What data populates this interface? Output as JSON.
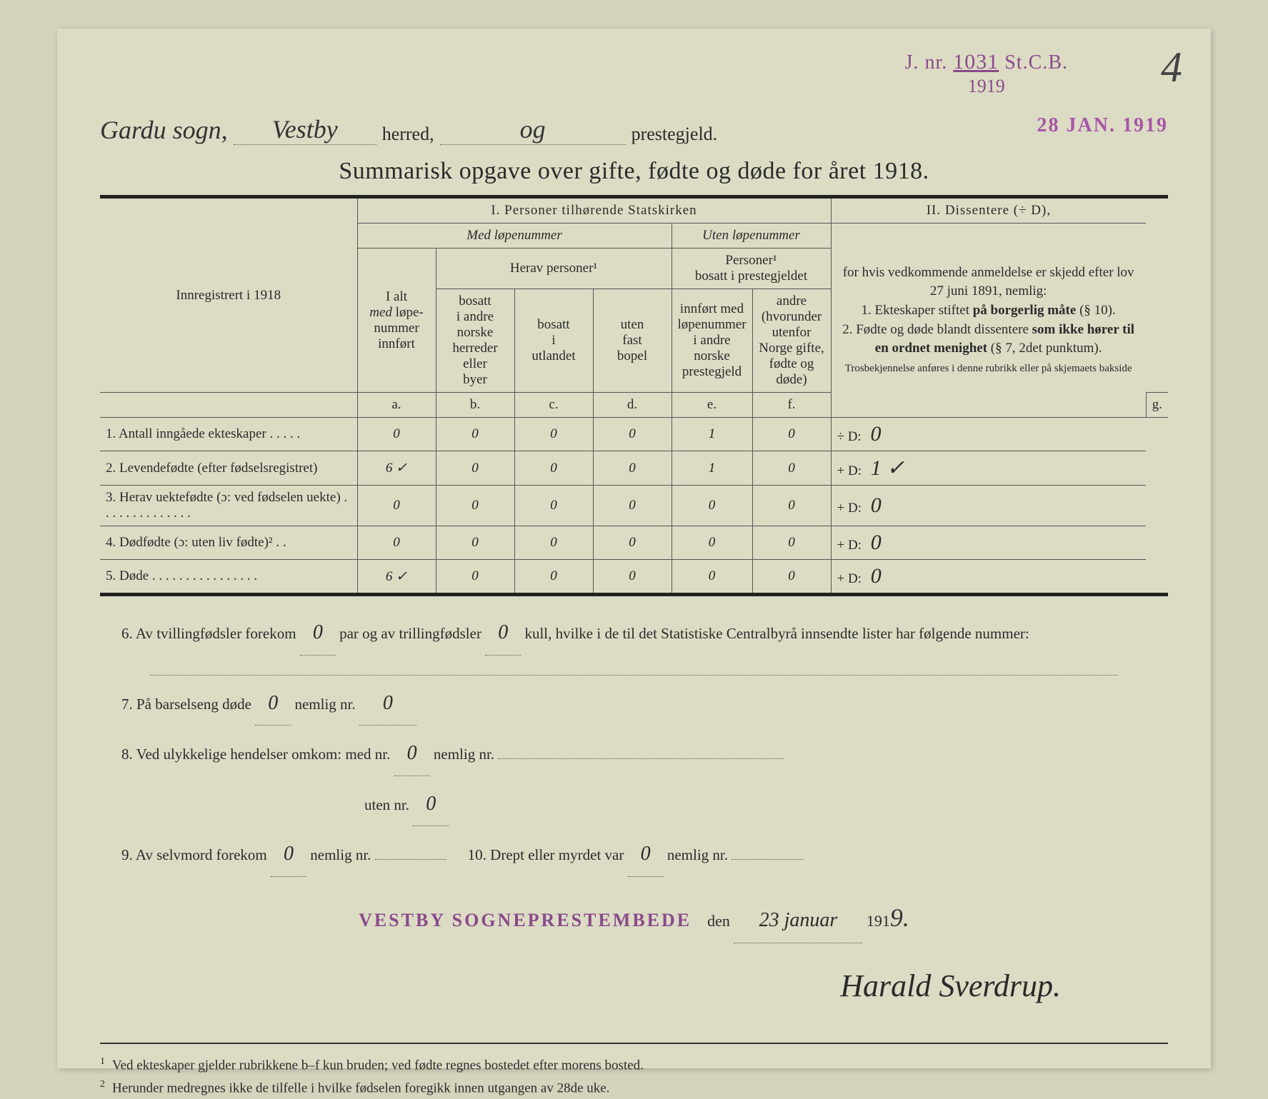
{
  "stamp": {
    "jnr_prefix": "J. nr.",
    "jnr_number": "1031",
    "jnr_suffix": "St.C.B.",
    "year": "1919"
  },
  "page_number": "4",
  "date_stamp": "28 JAN. 1919",
  "header": {
    "sogn": "Gardu sogn,",
    "sogn2": "Vestby",
    "herred_label": "herred,",
    "og": "og",
    "prestegjeld_label": "prestegjeld."
  },
  "title": "Summarisk opgave over gifte, fødte og døde for året 1918.",
  "table": {
    "section1": "I.  Personer tilhørende Statskirken",
    "section2_title": "II.  Dissentere (÷ D),",
    "section2_text": "for hvis vedkommende anmeldelse er skjedd efter lov 27 juni 1891, nemlig:\n1. Ekteskaper stiftet på borgerlig måte (§ 10).\n2. Fødte og døde blandt dissentere som ikke hører til en ordnet menighet (§ 7, 2det punktum).\nTrosbekjennelse anføres i denne rubrikk eller på skjemaets bakside",
    "med_lope": "Med løpenummer",
    "uten_lope": "Uten løpenummer",
    "innreg": "Innregistrert i 1918",
    "ialt": "I alt\nmed løpe-\nnummer\ninnført",
    "herav": "Herav personer¹",
    "personer_bosatt": "Personer¹\nbosatt i prestegjeldet",
    "col_b": "bosatt\ni andre\nnorske\nherreder\neller\nbyer",
    "col_c": "bosatt\ni\nutlandet",
    "col_d": "uten\nfast\nbopel",
    "col_e": "innført med\nløpenummer\ni andre\nnorske\nprestegjeld",
    "col_f": "andre\n(hvorunder\nutenfor\nNorge gifte,\nfødte og døde)",
    "letters": {
      "a": "a.",
      "b": "b.",
      "c": "c.",
      "d": "d.",
      "e": "e.",
      "f": "f.",
      "g": "g."
    },
    "rows": [
      {
        "label": "1. Antall inngåede ekteskaper . . . . .",
        "a": "0",
        "b": "0",
        "c": "0",
        "d": "0",
        "e": "1",
        "f": "0",
        "g_prefix": "÷ D:",
        "g": "0"
      },
      {
        "label": "2. Levendefødte (efter fødselsregistret)",
        "a": "6 ✓",
        "b": "0",
        "c": "0",
        "d": "0",
        "e": "1",
        "f": "0",
        "g_prefix": "+ D:",
        "g": "1 ✓"
      },
      {
        "label": "3. Herav uektefødte (ɔ: ved fødselen uekte) . . . . . . . . . . . . . .",
        "a": "0",
        "b": "0",
        "c": "0",
        "d": "0",
        "e": "0",
        "f": "0",
        "g_prefix": "+ D:",
        "g": "0"
      },
      {
        "label": "4. Dødfødte (ɔ: uten liv fødte)² . .",
        "a": "0",
        "b": "0",
        "c": "0",
        "d": "0",
        "e": "0",
        "f": "0",
        "g_prefix": "+ D:",
        "g": "0"
      },
      {
        "label": "5. Døde . . . . . . . . . . . . . . . .",
        "a": "6 ✓",
        "b": "0",
        "c": "0",
        "d": "0",
        "e": "0",
        "f": "0",
        "g_prefix": "+ D:",
        "g": "0"
      }
    ]
  },
  "below": {
    "q6a": "6. Av tvillingfødsler forekom",
    "q6_v1": "0",
    "q6b": "par og av trillingfødsler",
    "q6_v2": "0",
    "q6c": "kull, hvilke i de til det Statistiske Centralbyrå innsendte lister har følgende nummer:",
    "q7a": "7. På barselseng døde",
    "q7_v1": "0",
    "q7b": "nemlig nr.",
    "q7_v2": "0",
    "q8a": "8. Ved ulykkelige hendelser omkom:  med nr.",
    "q8_v1": "0",
    "q8b": "nemlig nr.",
    "q8c": "uten nr.",
    "q8_v2": "0",
    "q9a": "9. Av selvmord forekom",
    "q9_v1": "0",
    "q9b": "nemlig nr.",
    "q10a": "10.  Drept eller myrdet var",
    "q10_v1": "0",
    "q10b": "nemlig nr."
  },
  "signing": {
    "office_stamp": "VESTBY SOGNEPRESTEMBEDE",
    "den": "den",
    "date_hand": "23 januar",
    "year_prefix": "191",
    "year_digit": "9.",
    "signature": "Harald Sverdrup."
  },
  "footnotes": {
    "f1": "Ved ekteskaper gjelder rubrikkene b–f kun bruden; ved fødte regnes bostedet efter morens bosted.",
    "f2": "Herunder medregnes ikke de tilfelle i hvilke fødselen foregikk innen utgangen av 28de uke."
  }
}
